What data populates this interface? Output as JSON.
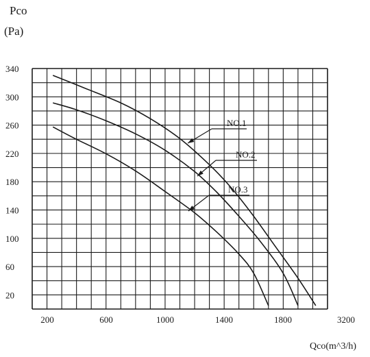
{
  "chart_data": {
    "type": "line",
    "ylabel_line1": "Pco",
    "ylabel_line2": "(Pa)",
    "xlabel": "Qco(m^3/h)",
    "x_ticks": [
      "200",
      "600",
      "1000",
      "1400",
      "1800",
      "3200"
    ],
    "y_ticks": [
      "340",
      "300",
      "260",
      "220",
      "180",
      "140",
      "100",
      "60",
      "20"
    ],
    "grid": true,
    "series": [
      {
        "name": "NO.1",
        "points": [
          [
            140,
            340
          ],
          [
            350,
            322
          ],
          [
            600,
            300
          ],
          [
            800,
            277
          ],
          [
            1000,
            248
          ],
          [
            1200,
            210
          ],
          [
            1350,
            176
          ],
          [
            1500,
            135
          ],
          [
            1650,
            90
          ],
          [
            1800,
            45
          ],
          [
            1920,
            5
          ]
        ]
      },
      {
        "name": "NO.2",
        "points": [
          [
            140,
            300
          ],
          [
            300,
            290
          ],
          [
            500,
            274
          ],
          [
            700,
            255
          ],
          [
            900,
            231
          ],
          [
            1100,
            200
          ],
          [
            1250,
            170
          ],
          [
            1400,
            135
          ],
          [
            1550,
            97
          ],
          [
            1700,
            52
          ],
          [
            1800,
            5
          ]
        ]
      },
      {
        "name": "NO.3",
        "points": [
          [
            140,
            265
          ],
          [
            300,
            247
          ],
          [
            500,
            226
          ],
          [
            700,
            201
          ],
          [
            900,
            171
          ],
          [
            1100,
            140
          ],
          [
            1250,
            112
          ],
          [
            1400,
            80
          ],
          [
            1500,
            52
          ],
          [
            1600,
            5
          ]
        ]
      }
    ]
  }
}
